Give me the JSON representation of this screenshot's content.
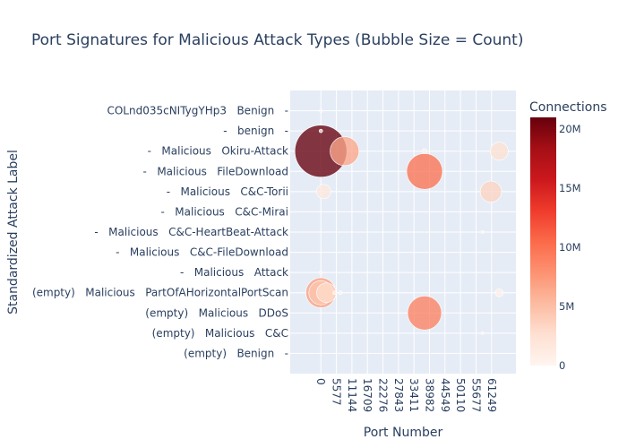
{
  "chart_data": {
    "type": "scatter",
    "title": "Port Signatures for Malicious Attack Types (Bubble Size = Count)",
    "xlabel": "Port Number",
    "ylabel": "Standardized Attack Label",
    "xlim": [
      -11000,
      70000
    ],
    "x_ticks": [
      0,
      5577,
      11144,
      16709,
      22276,
      27843,
      33411,
      38982,
      44549,
      50110,
      55677,
      61249
    ],
    "y_categories": [
      "(empty)   Benign   -",
      "(empty)   Malicious   C&C",
      "(empty)   Malicious   DDoS",
      "(empty)   Malicious   PartOfAHorizontalPortScan",
      "-   Malicious   Attack",
      "-   Malicious   C&C-FileDownload",
      "-   Malicious   C&C-HeartBeat-Attack",
      "-   Malicious   C&C-Mirai",
      "-   Malicious   C&C-Torii",
      "-   Malicious   FileDownload",
      "-   Malicious   Okiru-Attack",
      "-   benign   -",
      "COLnd035cNITygYHp3   Benign   -"
    ],
    "colorbar": {
      "title": "Connections",
      "range": [
        0,
        21000000
      ],
      "ticks": [
        0,
        5000000,
        10000000,
        15000000,
        20000000
      ],
      "tick_labels": [
        "0",
        "5M",
        "10M",
        "15M",
        "20M"
      ],
      "colors": [
        "#fff5f0",
        "#fee0d2",
        "#fcbba1",
        "#fc9272",
        "#fb6a4a",
        "#ef3b2c",
        "#cb181d",
        "#a50f15",
        "#67000d"
      ]
    },
    "points": [
      {
        "label": "-   Malicious   Okiru-Attack",
        "x": 0,
        "count": 21000000
      },
      {
        "label": "-   Malicious   Okiru-Attack",
        "x": 8500,
        "count": 6500000
      },
      {
        "label": "-   Malicious   Okiru-Attack",
        "x": 64000,
        "count": 2500000
      },
      {
        "label": "-   Malicious   Okiru-Attack",
        "x": 37215,
        "count": 200000
      },
      {
        "label": "-   Malicious   FileDownload",
        "x": 37215,
        "count": 10000000
      },
      {
        "label": "-   Malicious   C&C-Torii",
        "x": 61000,
        "count": 3500000
      },
      {
        "label": "-   Malicious   C&C-Torii",
        "x": 1000,
        "count": 1600000
      },
      {
        "label": "-   benign   -",
        "x": 0,
        "count": 100000
      },
      {
        "label": "COLnd035cNITygYHp3   Benign   -",
        "x": 0,
        "count": 80000
      },
      {
        "label": "(empty)   Malicious   PartOfAHorizontalPortScan",
        "x": 0,
        "count": 7000000
      },
      {
        "label": "(empty)   Malicious   PartOfAHorizontalPortScan",
        "x": 0,
        "count": 4500000
      },
      {
        "label": "(empty)   Malicious   PartOfAHorizontalPortScan",
        "x": 2000,
        "count": 3000000
      },
      {
        "label": "(empty)   Malicious   PartOfAHorizontalPortScan",
        "x": 64000,
        "count": 500000
      },
      {
        "label": "(empty)   Malicious   PartOfAHorizontalPortScan",
        "x": 5000,
        "count": 100000
      },
      {
        "label": "(empty)   Malicious   PartOfAHorizontalPortScan",
        "x": 7000,
        "count": 100000
      },
      {
        "label": "-   Malicious   Attack",
        "x": 0,
        "count": 100000
      },
      {
        "label": "(empty)   Malicious   DDoS",
        "x": 37215,
        "count": 9000000
      },
      {
        "label": "(empty)   Malicious   C&C",
        "x": 58000,
        "count": 60000
      },
      {
        "label": "-   Malicious   C&C-HeartBeat-Attack",
        "x": 58000,
        "count": 60000
      }
    ]
  }
}
